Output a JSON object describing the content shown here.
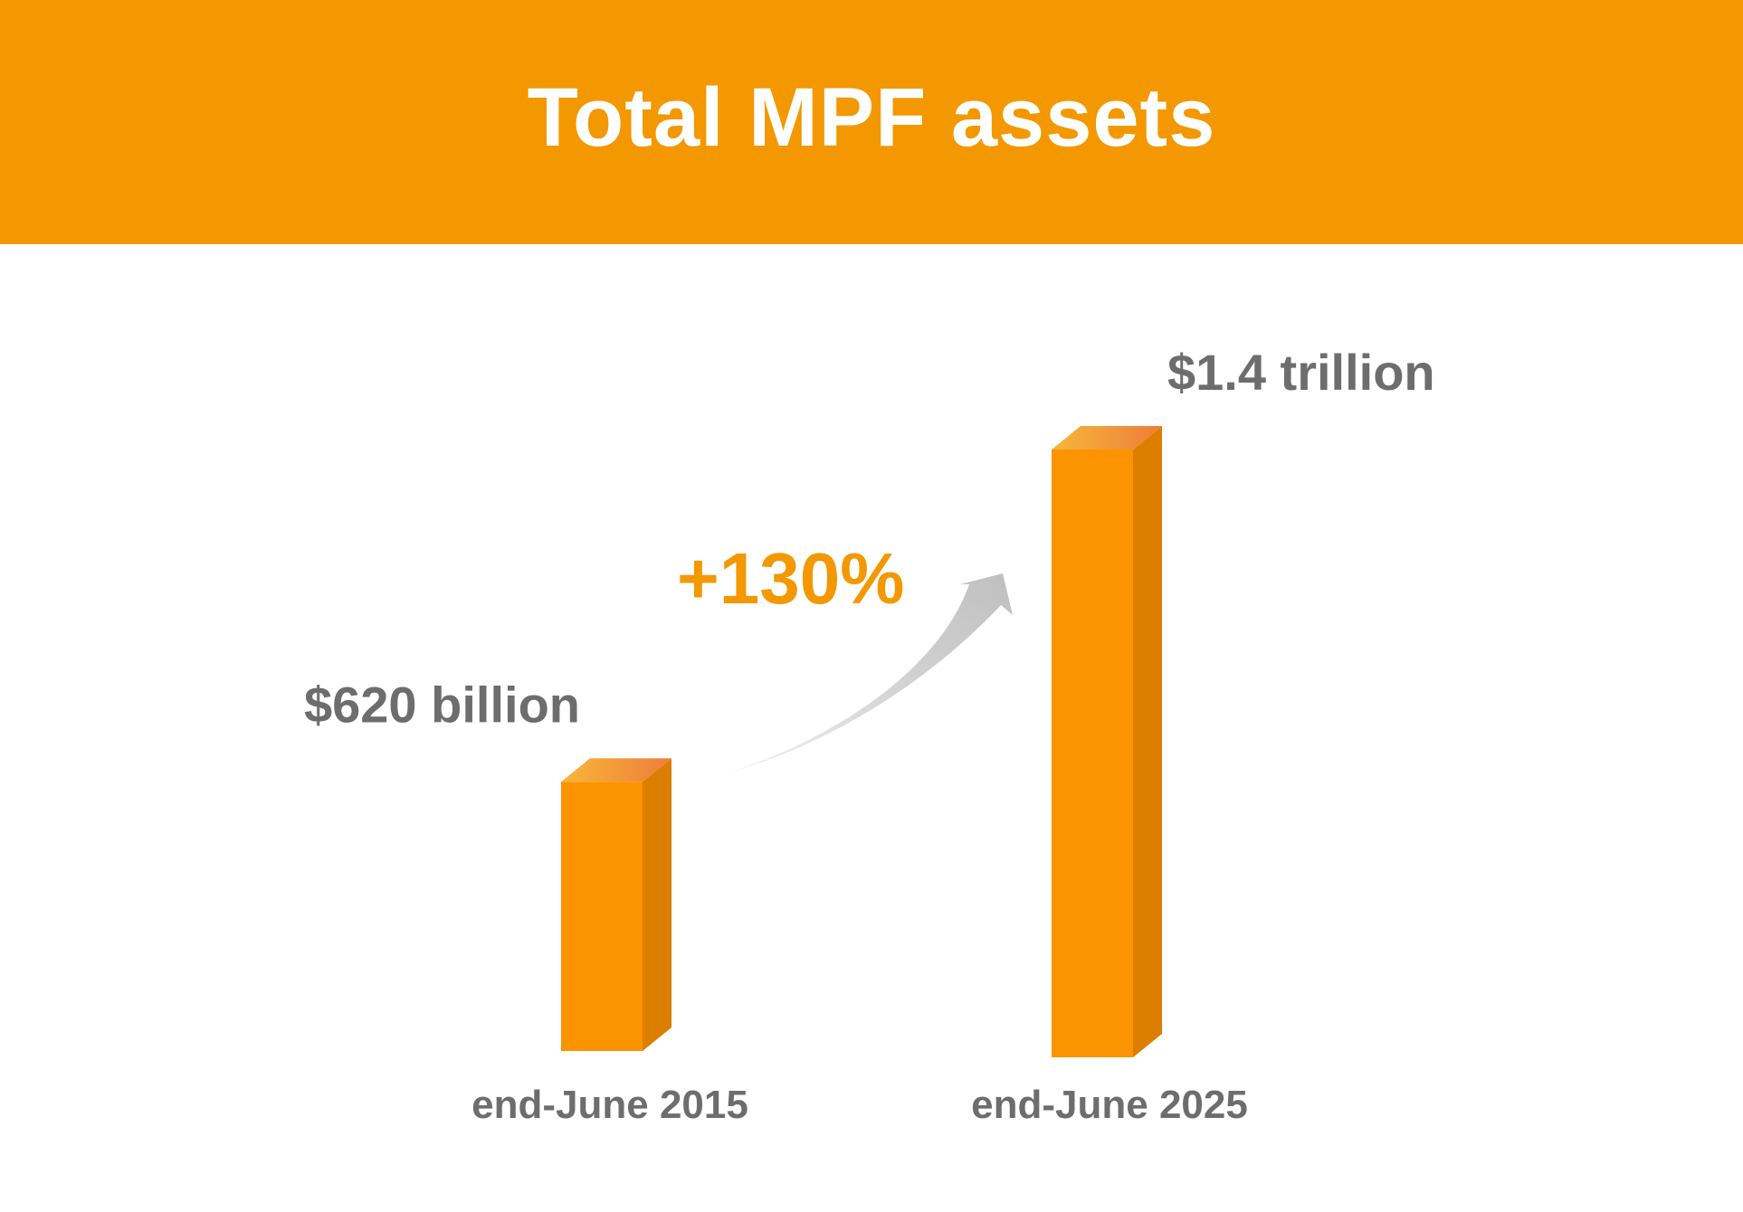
{
  "chart_data": {
    "type": "bar",
    "title": "Total MPF assets",
    "categories": [
      "end-June 2015",
      "end-June 2025"
    ],
    "values": [
      620,
      1400
    ],
    "unit": "billion",
    "value_labels": [
      "$620 billion",
      "$1.4 trillion"
    ],
    "annotation": "+130%",
    "xlabel": "",
    "ylabel": "",
    "grid": false,
    "legend": "none"
  },
  "colors": {
    "header_bg": "#f39800",
    "bar_front": "#fb9400",
    "bar_side": "#dc7f00",
    "bar_top_left": "#f7b73a",
    "bar_top_right": "#ee7d3a",
    "label_text": "#6d6d6d",
    "annotation_text": "#f39800",
    "arrow": "#c9c9c9"
  }
}
